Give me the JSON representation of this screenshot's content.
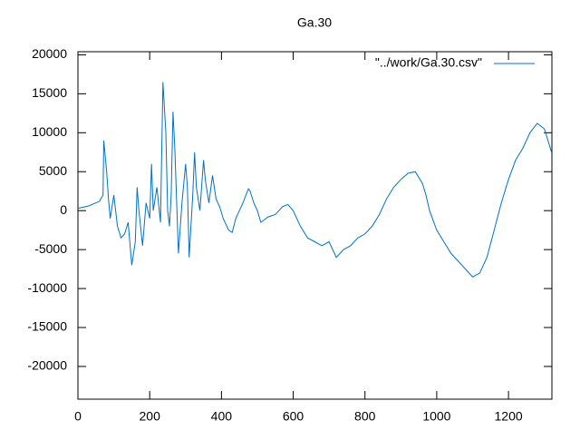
{
  "chart_data": {
    "type": "line",
    "title": "Ga.30",
    "x": [
      0,
      30,
      60,
      70,
      72,
      80,
      85,
      90,
      100,
      110,
      120,
      130,
      140,
      150,
      160,
      165,
      170,
      180,
      190,
      200,
      205,
      210,
      220,
      230,
      237,
      245,
      250,
      255,
      260,
      265,
      270,
      280,
      290,
      300,
      305,
      310,
      320,
      325,
      330,
      340,
      350,
      355,
      365,
      375,
      385,
      395,
      405,
      420,
      430,
      440,
      460,
      475,
      480,
      490,
      500,
      510,
      530,
      550,
      570,
      585,
      600,
      620,
      640,
      660,
      680,
      700,
      720,
      740,
      760,
      780,
      800,
      820,
      840,
      860,
      880,
      900,
      920,
      940,
      960,
      970,
      980,
      1000,
      1020,
      1040,
      1060,
      1080,
      1100,
      1120,
      1140,
      1160,
      1180,
      1200,
      1220,
      1240,
      1260,
      1280,
      1300,
      1320
    ],
    "series": [
      {
        "name": "\"../work/Ga.30.csv\"",
        "color": "#0072c6",
        "values": [
          300,
          600,
          1200,
          2000,
          9000,
          5000,
          1500,
          -1000,
          2000,
          -2000,
          -3500,
          -3000,
          -1500,
          -7000,
          -4000,
          3000,
          0,
          -4500,
          1000,
          -1000,
          6000,
          0,
          3000,
          -1500,
          16500,
          10000,
          0,
          -2000,
          2000,
          12700,
          8000,
          -5500,
          1000,
          6000,
          3000,
          -6000,
          2000,
          7500,
          3000,
          0,
          6500,
          4000,
          1000,
          4500,
          1500,
          500,
          -1000,
          -2500,
          -2800,
          -1000,
          1000,
          2800,
          2500,
          1000,
          0,
          -1500,
          -800,
          -500,
          500,
          800,
          0,
          -2000,
          -3500,
          -4000,
          -4500,
          -4000,
          -6000,
          -5000,
          -4500,
          -3500,
          -3000,
          -2000,
          -500,
          1500,
          3000,
          4000,
          4800,
          5000,
          3500,
          2000,
          0,
          -2500,
          -4000,
          -5500,
          -6500,
          -7500,
          -8500,
          -8000,
          -6000,
          -2500,
          1000,
          4000,
          6500,
          8000,
          10000,
          11200,
          10500,
          7500
        ]
      }
    ],
    "xlim": [
      0,
      1321
    ],
    "xticks": [
      0,
      200,
      400,
      600,
      800,
      1000,
      1200
    ],
    "ylim": [
      -24200,
      20400
    ],
    "yticks": [
      -20000,
      -15000,
      -10000,
      -5000,
      0,
      5000,
      10000,
      15000,
      20000
    ],
    "grid": false,
    "legend": "top-right"
  }
}
